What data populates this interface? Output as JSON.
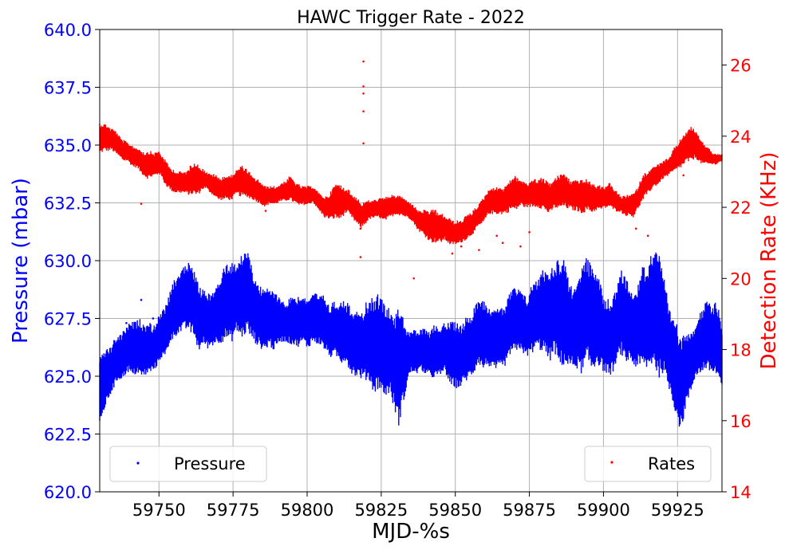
{
  "chart_data": {
    "type": "scatter",
    "title": "HAWC Trigger Rate - 2022",
    "xlabel": "MJD-%s",
    "ylabel_left": "Pressure (mbar)",
    "ylabel_right": "Detection Rate (KHz)",
    "xlim": [
      59730,
      59940
    ],
    "ylim_left": [
      620.0,
      640.0
    ],
    "ylim_right": [
      14,
      27
    ],
    "x_ticks": [
      59750,
      59775,
      59800,
      59825,
      59850,
      59875,
      59900,
      59925
    ],
    "x_tick_labels": [
      "59750",
      "59775",
      "59800",
      "59825",
      "59850",
      "59875",
      "59900",
      "59925"
    ],
    "y_left_ticks": [
      620.0,
      622.5,
      625.0,
      627.5,
      630.0,
      632.5,
      635.0,
      637.5,
      640.0
    ],
    "y_left_tick_labels": [
      "620.0",
      "622.5",
      "625.0",
      "627.5",
      "630.0",
      "632.5",
      "635.0",
      "637.5",
      "640.0"
    ],
    "y_right_ticks": [
      14,
      16,
      18,
      20,
      22,
      24,
      26
    ],
    "y_right_tick_labels": [
      "14",
      "16",
      "18",
      "20",
      "22",
      "24",
      "26"
    ],
    "grid": true,
    "legend_left": {
      "label": "Pressure",
      "placement": "lower-left"
    },
    "legend_right": {
      "label": "Rates",
      "placement": "lower-right"
    },
    "colors": {
      "pressure": "#0000ff",
      "rates": "#ff0000",
      "left_axis": "#0000ff",
      "right_axis": "#ff0000",
      "grid": "#b0b0b0"
    },
    "series": [
      {
        "name": "Pressure",
        "axis": "left",
        "color": "#0000ff",
        "x": [
          59730,
          59733,
          59736,
          59740,
          59744,
          59748,
          59752,
          59756,
          59760,
          59764,
          59768,
          59772,
          59776,
          59780,
          59784,
          59788,
          59792,
          59796,
          59800,
          59804,
          59808,
          59812,
          59816,
          59820,
          59824,
          59828,
          59831,
          59834,
          59838,
          59842,
          59846,
          59850,
          59854,
          59858,
          59862,
          59866,
          59870,
          59874,
          59878,
          59882,
          59886,
          59890,
          59894,
          59898,
          59902,
          59906,
          59910,
          59914,
          59918,
          59922,
          59926,
          59930,
          59934,
          59938,
          59940
        ],
        "ymin": [
          622.7,
          624.0,
          624.8,
          625.0,
          624.9,
          625.2,
          625.8,
          626.8,
          627.0,
          626.0,
          626.3,
          626.5,
          626.5,
          626.8,
          626.2,
          626.0,
          626.5,
          626.3,
          626.2,
          626.4,
          625.8,
          625.5,
          625.0,
          624.8,
          624.0,
          624.2,
          622.8,
          624.8,
          625.2,
          624.9,
          625.0,
          624.3,
          624.8,
          625.3,
          625.2,
          625.3,
          626.0,
          625.8,
          626.2,
          625.6,
          625.4,
          625.3,
          625.0,
          625.4,
          625.0,
          625.6,
          625.4,
          625.3,
          625.0,
          624.5,
          622.6,
          624.5,
          625.3,
          625.0,
          624.4
        ],
        "ymax": [
          625.8,
          626.4,
          626.8,
          627.3,
          627.5,
          627.3,
          628.0,
          629.5,
          630.2,
          628.8,
          628.6,
          629.9,
          630.0,
          630.6,
          628.9,
          628.8,
          628.3,
          628.6,
          628.4,
          628.7,
          628.2,
          628.3,
          628.0,
          628.2,
          628.6,
          628.0,
          628.3,
          627.0,
          627.0,
          627.2,
          627.3,
          627.4,
          627.6,
          628.5,
          628.0,
          628.2,
          628.9,
          628.5,
          629.6,
          629.7,
          630.3,
          629.0,
          630.2,
          629.5,
          628.2,
          629.6,
          628.8,
          630.0,
          630.8,
          628.2,
          627.0,
          627.0,
          628.2,
          628.4,
          627.2
        ]
      },
      {
        "name": "Rates",
        "axis": "right",
        "color": "#ff0000",
        "x": [
          59730,
          59734,
          59738,
          59742,
          59746,
          59750,
          59754,
          59758,
          59762,
          59766,
          59770,
          59774,
          59778,
          59782,
          59786,
          59790,
          59794,
          59798,
          59802,
          59806,
          59810,
          59814,
          59818,
          59822,
          59826,
          59830,
          59834,
          59838,
          59842,
          59846,
          59850,
          59854,
          59858,
          59862,
          59866,
          59870,
          59874,
          59878,
          59882,
          59886,
          59890,
          59894,
          59898,
          59902,
          59906,
          59910,
          59914,
          59918,
          59922,
          59926,
          59930,
          59934,
          59938,
          59940
        ],
        "ymin": [
          23.5,
          23.6,
          23.3,
          23.1,
          22.8,
          22.9,
          22.4,
          22.4,
          22.3,
          22.5,
          22.2,
          22.2,
          22.3,
          22.2,
          22.0,
          22.1,
          22.2,
          22.0,
          22.1,
          21.7,
          21.6,
          21.8,
          21.4,
          21.7,
          21.6,
          21.8,
          21.7,
          21.3,
          21.0,
          21.0,
          20.9,
          21.1,
          21.4,
          21.8,
          21.8,
          21.9,
          22.0,
          22.0,
          21.8,
          22.0,
          21.9,
          21.8,
          21.9,
          22.0,
          21.8,
          21.7,
          22.3,
          22.6,
          22.9,
          23.1,
          23.3,
          23.2,
          23.2,
          23.3
        ],
        "ymax": [
          24.4,
          24.3,
          23.9,
          23.7,
          23.6,
          23.6,
          23.1,
          23.0,
          23.3,
          23.0,
          22.9,
          22.9,
          23.2,
          22.9,
          22.6,
          22.6,
          22.9,
          22.6,
          22.6,
          22.3,
          22.7,
          22.5,
          22.2,
          22.2,
          22.3,
          22.4,
          22.2,
          21.9,
          22.0,
          21.8,
          21.6,
          21.8,
          22.1,
          22.6,
          22.6,
          22.9,
          22.7,
          22.9,
          22.7,
          23.0,
          22.8,
          22.8,
          22.6,
          22.7,
          22.3,
          22.4,
          23.0,
          23.2,
          23.4,
          24.0,
          24.3,
          23.8,
          23.5,
          23.5
        ]
      }
    ],
    "rate_outliers": [
      {
        "x": 59819,
        "y": 26.1
      },
      {
        "x": 59819,
        "y": 25.4
      },
      {
        "x": 59819,
        "y": 25.2
      },
      {
        "x": 59819,
        "y": 24.7
      },
      {
        "x": 59819,
        "y": 23.8
      },
      {
        "x": 59744,
        "y": 22.1
      },
      {
        "x": 59818,
        "y": 20.6
      },
      {
        "x": 59818,
        "y": 21.4
      },
      {
        "x": 59849,
        "y": 20.7
      },
      {
        "x": 59852,
        "y": 20.9
      },
      {
        "x": 59858,
        "y": 20.8
      },
      {
        "x": 59864,
        "y": 21.2
      },
      {
        "x": 59866,
        "y": 21.0
      },
      {
        "x": 59872,
        "y": 20.9
      },
      {
        "x": 59875,
        "y": 21.3
      },
      {
        "x": 59836,
        "y": 20.0
      },
      {
        "x": 59786,
        "y": 21.9
      },
      {
        "x": 59911,
        "y": 21.4
      },
      {
        "x": 59915,
        "y": 21.2
      },
      {
        "x": 59927,
        "y": 22.9
      }
    ],
    "pressure_outliers": [
      {
        "x": 59744,
        "y": 628.3
      },
      {
        "x": 59748,
        "y": 627.5
      },
      {
        "x": 59739,
        "y": 627.3
      },
      {
        "x": 59757,
        "y": 628.4
      }
    ]
  }
}
